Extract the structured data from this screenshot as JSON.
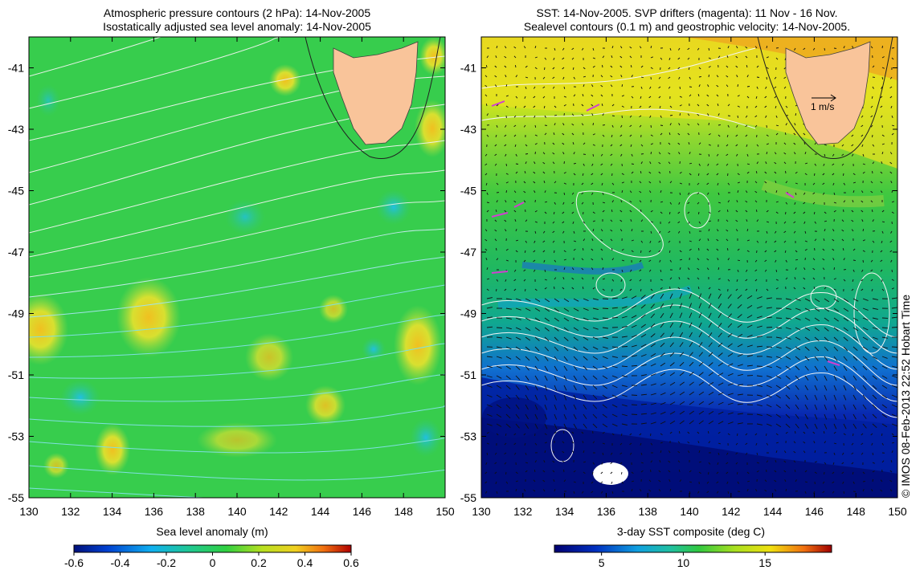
{
  "left_panel": {
    "title_line1": "Atmospheric pressure contours (2 hPa): 14-Nov-2005",
    "title_line2": "Isostatically adjusted sea level anomaly: 14-Nov-2005",
    "x_ticks": [
      "130",
      "132",
      "134",
      "136",
      "138",
      "140",
      "142",
      "144",
      "146",
      "148",
      "150"
    ],
    "y_ticks": [
      "-41",
      "-43",
      "-45",
      "-47",
      "-49",
      "-51",
      "-53",
      "-55"
    ],
    "colorbar_label": "Sea level anomaly (m)",
    "colorbar_ticks": [
      "-0.6",
      "-0.4",
      "-0.2",
      "0",
      "0.2",
      "0.4",
      "0.6"
    ],
    "colorbar_range": [
      -0.6,
      0.6
    ]
  },
  "right_panel": {
    "title_line1": "SST: 14-Nov-2005. SVP drifters (magenta): 11 Nov - 16 Nov.",
    "title_line2": "Sealevel contours (0.1 m) and geostrophic velocity: 14-Nov-2005.",
    "x_ticks": [
      "130",
      "132",
      "134",
      "136",
      "138",
      "140",
      "142",
      "144",
      "146",
      "148",
      "150"
    ],
    "y_ticks": [
      "-41",
      "-43",
      "-45",
      "-47",
      "-49",
      "-51",
      "-53",
      "-55"
    ],
    "velocity_scale_label": "1 m/s",
    "colorbar_label": "3-day SST composite (deg C)",
    "colorbar_ticks": [
      "5",
      "10",
      "15"
    ]
  },
  "copyright": "© IMOS 08-Feb-2013 22:52 Hobart Time",
  "colors": {
    "land": "#f9c49a",
    "sla_base": "#3fd23c",
    "contour_pressure": "#e8f2e8",
    "contour_cyan": "#7fe0e0",
    "drifter": "#d040d0",
    "sst_warm": "#f0e010",
    "sst_cold": "#0010a0"
  }
}
